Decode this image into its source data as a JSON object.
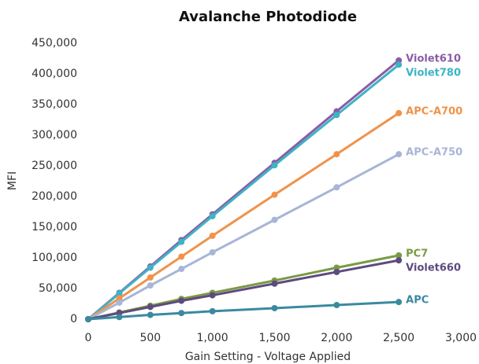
{
  "chart_data": {
    "type": "line",
    "title": "Avalanche Photodiode",
    "x_label": "Gain Setting - Voltage Applied",
    "y_label": "MFI",
    "x": [
      0,
      250,
      500,
      750,
      1000,
      1500,
      2000,
      2500
    ],
    "series": [
      {
        "name": "Violet610",
        "color": "#8a5ca8",
        "values": [
          0,
          43000,
          86000,
          129000,
          171000,
          255000,
          339000,
          422000
        ]
      },
      {
        "name": "Violet780",
        "color": "#3eb3c4",
        "values": [
          0,
          42000,
          84000,
          126000,
          168000,
          251000,
          333000,
          415000
        ]
      },
      {
        "name": "APC-A700",
        "color": "#f0924a",
        "values": [
          0,
          34000,
          68000,
          102000,
          136000,
          203000,
          269000,
          336000
        ]
      },
      {
        "name": "APC-A750",
        "color": "#a7b5d6",
        "values": [
          0,
          27000,
          55000,
          82000,
          109000,
          162000,
          215000,
          269000
        ]
      },
      {
        "name": "PC7",
        "color": "#7a9a44",
        "values": [
          0,
          11000,
          22000,
          33000,
          43000,
          63000,
          84000,
          104000
        ]
      },
      {
        "name": "Violet660",
        "color": "#5e4a80",
        "values": [
          0,
          10000,
          20000,
          30000,
          39000,
          58000,
          77000,
          96000
        ]
      },
      {
        "name": "APC",
        "color": "#3a8aa0",
        "values": [
          0,
          3500,
          7000,
          10000,
          13000,
          18000,
          23000,
          28000
        ]
      }
    ],
    "xlim": [
      0,
      3000
    ],
    "xticks": [
      0,
      500,
      {
        "value": 1000,
        "label": "1,000"
      },
      {
        "value": 1500,
        "label": "1,500"
      },
      {
        "value": 2000,
        "label": "2,000"
      },
      {
        "value": 2500,
        "label": "2,500"
      },
      {
        "value": 3000,
        "label": "3,000"
      }
    ],
    "ylim": [
      0,
      450000
    ],
    "yticks": [
      0,
      {
        "value": 50000,
        "label": "50,000"
      },
      {
        "value": 100000,
        "label": "100,000"
      },
      {
        "value": 150000,
        "label": "150,000"
      },
      {
        "value": 200000,
        "label": "200,000"
      },
      {
        "value": 250000,
        "label": "250,000"
      },
      {
        "value": 300000,
        "label": "300,000"
      },
      {
        "value": 350000,
        "label": "350,000"
      },
      {
        "value": 400000,
        "label": "400,000"
      },
      {
        "value": 450000,
        "label": "450,000"
      }
    ],
    "grid": false
  }
}
